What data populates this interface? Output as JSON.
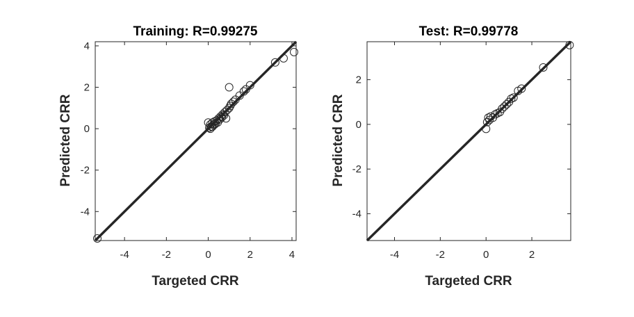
{
  "chart_data": [
    {
      "type": "scatter",
      "title": "Training: R=0.99275",
      "xlabel": "Targeted CRR",
      "ylabel": "Predicted CRR",
      "xlim": [
        -5.4,
        4.2
      ],
      "ylim": [
        -5.4,
        4.2
      ],
      "xticks": [
        -4,
        -2,
        0,
        2,
        4
      ],
      "yticks": [
        -4,
        -2,
        0,
        2,
        4
      ],
      "grid": false,
      "fit_line": {
        "x": [
          -5.4,
          4.2
        ],
        "y": [
          -5.4,
          4.2
        ],
        "color": "#262626"
      },
      "marker_color": "#262626",
      "points": [
        {
          "x": -5.3,
          "y": -5.3
        },
        {
          "x": 0.0,
          "y": 0.3
        },
        {
          "x": 0.05,
          "y": 0.05
        },
        {
          "x": 0.1,
          "y": 0.2
        },
        {
          "x": 0.15,
          "y": 0.1
        },
        {
          "x": 0.2,
          "y": 0.3
        },
        {
          "x": 0.25,
          "y": 0.2
        },
        {
          "x": 0.3,
          "y": 0.35
        },
        {
          "x": 0.35,
          "y": 0.25
        },
        {
          "x": 0.4,
          "y": 0.4
        },
        {
          "x": 0.45,
          "y": 0.3
        },
        {
          "x": 0.5,
          "y": 0.5
        },
        {
          "x": 0.55,
          "y": 0.45
        },
        {
          "x": 0.6,
          "y": 0.6
        },
        {
          "x": 0.65,
          "y": 0.55
        },
        {
          "x": 0.7,
          "y": 0.7
        },
        {
          "x": 0.75,
          "y": 0.65
        },
        {
          "x": 0.8,
          "y": 0.8
        },
        {
          "x": 0.85,
          "y": 0.5
        },
        {
          "x": 0.9,
          "y": 0.9
        },
        {
          "x": 1.0,
          "y": 1.0
        },
        {
          "x": 1.05,
          "y": 1.1
        },
        {
          "x": 1.1,
          "y": 1.2
        },
        {
          "x": 1.2,
          "y": 1.3
        },
        {
          "x": 1.3,
          "y": 1.4
        },
        {
          "x": 0.2,
          "y": 0.1
        },
        {
          "x": 0.3,
          "y": 0.2
        },
        {
          "x": 0.1,
          "y": 0.0
        },
        {
          "x": 1.0,
          "y": 2.0
        },
        {
          "x": 1.5,
          "y": 1.6
        },
        {
          "x": 1.7,
          "y": 1.8
        },
        {
          "x": 1.8,
          "y": 1.9
        },
        {
          "x": 2.0,
          "y": 2.1
        },
        {
          "x": 3.2,
          "y": 3.2
        },
        {
          "x": 3.6,
          "y": 3.4
        },
        {
          "x": 4.1,
          "y": 3.7
        }
      ]
    },
    {
      "type": "scatter",
      "title": "Test: R=0.99778",
      "xlabel": "Targeted CRR",
      "ylabel": "Predicted CRR",
      "xlim": [
        -5.2,
        3.7
      ],
      "ylim": [
        -5.2,
        3.7
      ],
      "xticks": [
        -4,
        -2,
        0,
        2
      ],
      "yticks": [
        -4,
        -2,
        0,
        2
      ],
      "grid": false,
      "fit_line": {
        "x": [
          -5.2,
          3.7
        ],
        "y": [
          -5.2,
          3.7
        ],
        "color": "#262626"
      },
      "marker_color": "#262626",
      "points": [
        {
          "x": 0.0,
          "y": -0.2
        },
        {
          "x": 0.05,
          "y": 0.1
        },
        {
          "x": 0.1,
          "y": 0.3
        },
        {
          "x": 0.15,
          "y": 0.2
        },
        {
          "x": 0.2,
          "y": 0.35
        },
        {
          "x": 0.3,
          "y": 0.3
        },
        {
          "x": 0.4,
          "y": 0.45
        },
        {
          "x": 0.5,
          "y": 0.5
        },
        {
          "x": 0.6,
          "y": 0.55
        },
        {
          "x": 0.7,
          "y": 0.7
        },
        {
          "x": 0.8,
          "y": 0.8
        },
        {
          "x": 0.9,
          "y": 0.9
        },
        {
          "x": 1.0,
          "y": 1.0
        },
        {
          "x": 1.1,
          "y": 1.15
        },
        {
          "x": 1.2,
          "y": 1.2
        },
        {
          "x": 1.4,
          "y": 1.5
        },
        {
          "x": 1.55,
          "y": 1.6
        },
        {
          "x": 2.5,
          "y": 2.55
        },
        {
          "x": 3.65,
          "y": 3.55
        }
      ]
    }
  ]
}
